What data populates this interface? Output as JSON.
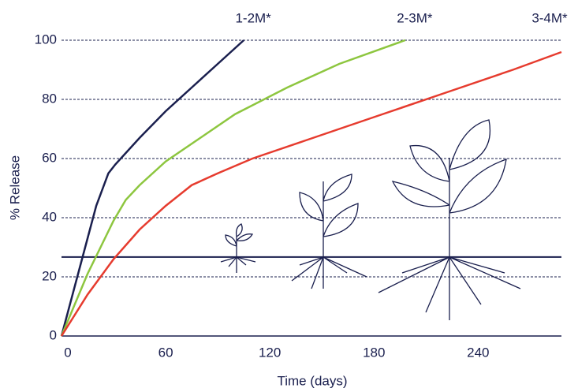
{
  "chart_data": {
    "type": "line",
    "x_label": "Time (days)",
    "y_label": "% Release",
    "xlim": [
      0,
      288
    ],
    "xticks": [
      0,
      60,
      120,
      180,
      240
    ],
    "ylim": [
      0,
      100
    ],
    "yticks": [
      0,
      20,
      40,
      60,
      80,
      100
    ],
    "grid": true,
    "reference_line": 26.7,
    "series": [
      {
        "name": "1-2M*",
        "color": "#1a1f4e",
        "x": [
          0,
          10,
          20,
          27,
          31,
          45,
          60,
          75,
          90,
          105
        ],
        "values": [
          0,
          22,
          44,
          55,
          58,
          67,
          76,
          84,
          92,
          100
        ]
      },
      {
        "name": "2-3M*",
        "color": "#8dc63f",
        "x": [
          0,
          15,
          30,
          37,
          45,
          60,
          80,
          100,
          130,
          160,
          198
        ],
        "values": [
          0,
          21,
          39,
          46,
          51,
          59,
          67,
          75,
          84,
          92,
          100
        ]
      },
      {
        "name": "3-4M*",
        "color": "#e63b2e",
        "x": [
          0,
          15,
          30,
          45,
          60,
          75,
          90,
          110,
          140,
          180,
          220,
          260,
          288
        ],
        "values": [
          0,
          14,
          26,
          36,
          44,
          51,
          55,
          60,
          66,
          74,
          82,
          90,
          96
        ]
      }
    ]
  }
}
